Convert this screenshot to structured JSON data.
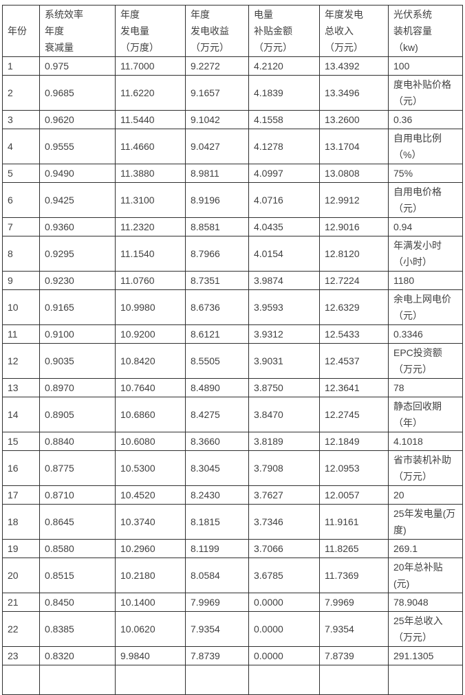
{
  "colors": {
    "background": "#ffffff",
    "border": "#2f2f2f",
    "text": "#404040"
  },
  "table": {
    "column_keys": [
      "year",
      "efficiency-decay",
      "annual-generation",
      "annual-revenue",
      "subsidy-amount",
      "annual-total-income",
      "pv-system-param"
    ],
    "headers": [
      "年份",
      "系统效率\n年度\n衰减量",
      "年度\n发电量\n（万度）",
      "年度\n发电收益\n（万元）",
      "电量\n补贴金额\n（万元）",
      "年度发电\n总收入\n（万元）",
      "光伏系统\n装机容量\n（kw)"
    ],
    "rows": [
      [
        "1",
        "0.975",
        "11.7000",
        "9.2272",
        "4.2120",
        "13.4392",
        "100"
      ],
      [
        "2",
        "0.9685",
        "11.6220",
        "9.1657",
        "4.1839",
        "13.3496",
        "度电补贴价格（元）"
      ],
      [
        "3",
        "0.9620",
        "11.5440",
        "9.1042",
        "4.1558",
        "13.2600",
        "0.36"
      ],
      [
        "4",
        "0.9555",
        "11.4660",
        "9.0427",
        "4.1278",
        "13.1704",
        "自用电比例（%）"
      ],
      [
        "5",
        "0.9490",
        "11.3880",
        "8.9811",
        "4.0997",
        "13.0808",
        "75%"
      ],
      [
        "6",
        "0.9425",
        "11.3100",
        "8.9196",
        "4.0716",
        "12.9912",
        "自用电价格（元）"
      ],
      [
        "7",
        "0.9360",
        "11.2320",
        "8.8581",
        "4.0435",
        "12.9016",
        "0.94"
      ],
      [
        "8",
        "0.9295",
        "11.1540",
        "8.7966",
        "4.0154",
        "12.8120",
        "年满发小时（小时）"
      ],
      [
        "9",
        "0.9230",
        "11.0760",
        "8.7351",
        "3.9874",
        "12.7224",
        "1180"
      ],
      [
        "10",
        "0.9165",
        "10.9980",
        "8.6736",
        "3.9593",
        "12.6329",
        "余电上网电价（元）"
      ],
      [
        "11",
        "0.9100",
        "10.9200",
        "8.6121",
        "3.9312",
        "12.5433",
        "0.3346"
      ],
      [
        "12",
        "0.9035",
        "10.8420",
        "8.5505",
        "3.9031",
        "12.4537",
        "EPC投资额（万元）"
      ],
      [
        "13",
        "0.8970",
        "10.7640",
        "8.4890",
        "3.8750",
        "12.3641",
        "78"
      ],
      [
        "14",
        "0.8905",
        "10.6860",
        "8.4275",
        "3.8470",
        "12.2745",
        "静态回收期（年）"
      ],
      [
        "15",
        "0.8840",
        "10.6080",
        "8.3660",
        "3.8189",
        "12.1849",
        "4.1018"
      ],
      [
        "16",
        "0.8775",
        "10.5300",
        "8.3045",
        "3.7908",
        "12.0953",
        "省市装机补助（万元）"
      ],
      [
        "17",
        "0.8710",
        "10.4520",
        "8.2430",
        "3.7627",
        "12.0057",
        "20"
      ],
      [
        "18",
        "0.8645",
        "10.3740",
        "8.1815",
        "3.7346",
        "11.9161",
        "25年发电量(万度)"
      ],
      [
        "19",
        "0.8580",
        "10.2960",
        "8.1199",
        "3.7066",
        "11.8265",
        "269.1"
      ],
      [
        "20",
        "0.8515",
        "10.2180",
        "8.0584",
        "3.6785",
        "11.7369",
        "20年总补贴(元)"
      ],
      [
        "21",
        "0.8450",
        "10.1400",
        "7.9969",
        "0.0000",
        "7.9969",
        "78.9048"
      ],
      [
        "22",
        "0.8385",
        "10.0620",
        "7.9354",
        "0.0000",
        "7.9354",
        "25年总收入（万元）"
      ],
      [
        "23",
        "0.8320",
        "9.9840",
        "7.8739",
        "0.0000",
        "7.8739",
        "291.1305"
      ]
    ]
  }
}
